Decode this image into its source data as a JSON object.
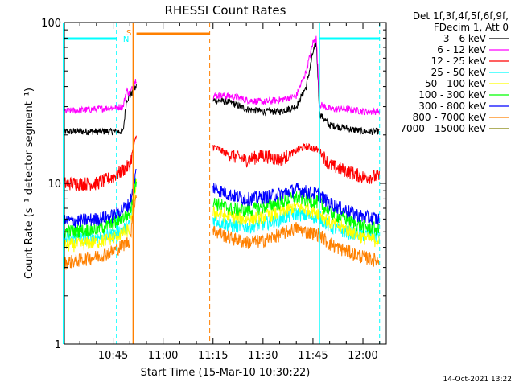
{
  "chart_data": {
    "type": "line",
    "title": "RHESSI Count Rates",
    "xlabel": "Start Time (15-Mar-10 10:30:22)",
    "ylabel": "Count Rate (s⁻¹ detector segment⁻¹)",
    "yscale": "log",
    "ylim": [
      1,
      100
    ],
    "xlim": [
      "10:30:22",
      "12:07:00"
    ],
    "x_ticks": [
      "10:45",
      "11:00",
      "11:15",
      "11:30",
      "11:45",
      "12:00"
    ],
    "y_ticks": [
      "1",
      "10",
      "100"
    ],
    "grid": false,
    "legend_position": "top-right",
    "legend_header": [
      "Det 1f,3f,4f,5f,6f,9f,",
      "FDecim 1, Att 0"
    ],
    "series": [
      {
        "name": "3 - 6 keV",
        "color": "#000000",
        "x": [
          "10:30",
          "10:40",
          "10:48",
          "10:49",
          "10:50",
          "10:52",
          "11:15",
          "11:20",
          "11:25",
          "11:30",
          "11:35",
          "11:40",
          "11:43",
          "11:45",
          "11:46",
          "11:47",
          "11:50",
          "11:55",
          "12:00",
          "12:05"
        ],
        "values": [
          21,
          21,
          21,
          33,
          35,
          40,
          33,
          32,
          29,
          28,
          28,
          30,
          40,
          65,
          75,
          27,
          23,
          22,
          21,
          21
        ]
      },
      {
        "name": "6 - 12 keV",
        "color": "#ff00ff",
        "x": [
          "10:30",
          "10:40",
          "10:48",
          "10:49",
          "10:50",
          "10:52",
          "11:15",
          "11:20",
          "11:25",
          "11:30",
          "11:35",
          "11:40",
          "11:43",
          "11:45",
          "11:46",
          "11:47",
          "11:50",
          "11:55",
          "12:00",
          "12:05"
        ],
        "values": [
          28,
          29,
          30,
          38,
          36,
          45,
          35,
          35,
          33,
          32,
          33,
          35,
          50,
          75,
          80,
          31,
          29,
          29,
          28,
          28
        ]
      },
      {
        "name": "12 - 25 keV",
        "color": "#ff0000",
        "x": [
          "10:30",
          "10:40",
          "10:45",
          "10:50",
          "10:52",
          "11:15",
          "11:20",
          "11:25",
          "11:30",
          "11:35",
          "11:40",
          "11:43",
          "11:47",
          "11:50",
          "11:55",
          "12:00",
          "12:05"
        ],
        "values": [
          10,
          10,
          11,
          13,
          20,
          17,
          15,
          14,
          15,
          14,
          16,
          17,
          16,
          13,
          12,
          11,
          11
        ]
      },
      {
        "name": "25 - 50 keV",
        "color": "#00ffff",
        "x": [
          "10:30",
          "10:40",
          "10:45",
          "10:50",
          "10:52",
          "11:15",
          "11:20",
          "11:25",
          "11:30",
          "11:35",
          "11:40",
          "11:43",
          "11:47",
          "11:50",
          "11:55",
          "12:00",
          "12:05"
        ],
        "values": [
          4.5,
          4.6,
          4.8,
          5.5,
          11,
          6,
          5.5,
          5.4,
          5.6,
          6,
          6.5,
          6.3,
          6.2,
          5.4,
          5,
          4.8,
          4.7
        ]
      },
      {
        "name": "50 - 100 keV",
        "color": "#ffff00",
        "x": [
          "10:30",
          "10:40",
          "10:45",
          "10:50",
          "10:52",
          "11:15",
          "11:20",
          "11:25",
          "11:30",
          "11:35",
          "11:40",
          "11:43",
          "11:47",
          "11:50",
          "11:55",
          "12:00",
          "12:05"
        ],
        "values": [
          4.1,
          4.3,
          4.6,
          5.2,
          10,
          6.6,
          6.2,
          6,
          6.2,
          6.6,
          7.2,
          6.9,
          6.6,
          5.7,
          5.2,
          4.6,
          4.4
        ]
      },
      {
        "name": "100 - 300 keV",
        "color": "#00ff00",
        "x": [
          "10:30",
          "10:40",
          "10:45",
          "10:50",
          "10:52",
          "11:15",
          "11:20",
          "11:25",
          "11:30",
          "11:35",
          "11:40",
          "11:43",
          "11:47",
          "11:50",
          "11:55",
          "12:00",
          "12:05"
        ],
        "values": [
          5,
          5.2,
          5.6,
          6.5,
          11,
          7.6,
          7,
          6.8,
          7.1,
          7.6,
          8.2,
          7.9,
          7.6,
          6.6,
          6,
          5.4,
          5.2
        ]
      },
      {
        "name": "300 - 800 keV",
        "color": "#0000ff",
        "x": [
          "10:30",
          "10:40",
          "10:45",
          "10:50",
          "10:52",
          "11:15",
          "11:20",
          "11:25",
          "11:30",
          "11:35",
          "11:40",
          "11:43",
          "11:47",
          "11:50",
          "11:55",
          "12:00",
          "12:05"
        ],
        "values": [
          5.8,
          6,
          6.3,
          7.5,
          12,
          9.5,
          8.5,
          8,
          8.2,
          8.6,
          9.2,
          8.9,
          8.5,
          7.5,
          6.8,
          6.2,
          6
        ]
      },
      {
        "name": "800 - 7000 keV",
        "color": "#ff8000",
        "x": [
          "10:30",
          "10:40",
          "10:45",
          "10:50",
          "10:52",
          "11:15",
          "11:20",
          "11:25",
          "11:30",
          "11:35",
          "11:40",
          "11:43",
          "11:47",
          "11:50",
          "11:55",
          "12:00",
          "12:05"
        ],
        "values": [
          3.2,
          3.5,
          3.8,
          4.4,
          9,
          5.1,
          4.6,
          4.3,
          4.4,
          4.8,
          5.3,
          5,
          4.8,
          4.2,
          3.8,
          3.5,
          3.3
        ]
      },
      {
        "name": "7000 - 15000 keV",
        "color": "#808000",
        "x": [],
        "values": []
      }
    ],
    "annotations": {
      "vlines_cyan": [
        "10:30",
        "10:46",
        "11:47",
        "12:05"
      ],
      "vlines_orange": [
        "10:51",
        "11:14"
      ],
      "top_bars": [
        {
          "from": "10:30",
          "to": "10:46",
          "color": "#00ffff"
        },
        {
          "from": "10:52",
          "to": "11:14",
          "color": "#ff8000"
        },
        {
          "from": "11:47",
          "to": "12:05",
          "color": "#00ffff"
        }
      ],
      "flag_labels": [
        {
          "text": "S",
          "at": "10:48",
          "color": "#ff8000"
        },
        {
          "text": "N",
          "at": "10:47",
          "color": "#00ffff"
        }
      ]
    },
    "footer_date": "14-Oct-2021 13:22"
  }
}
